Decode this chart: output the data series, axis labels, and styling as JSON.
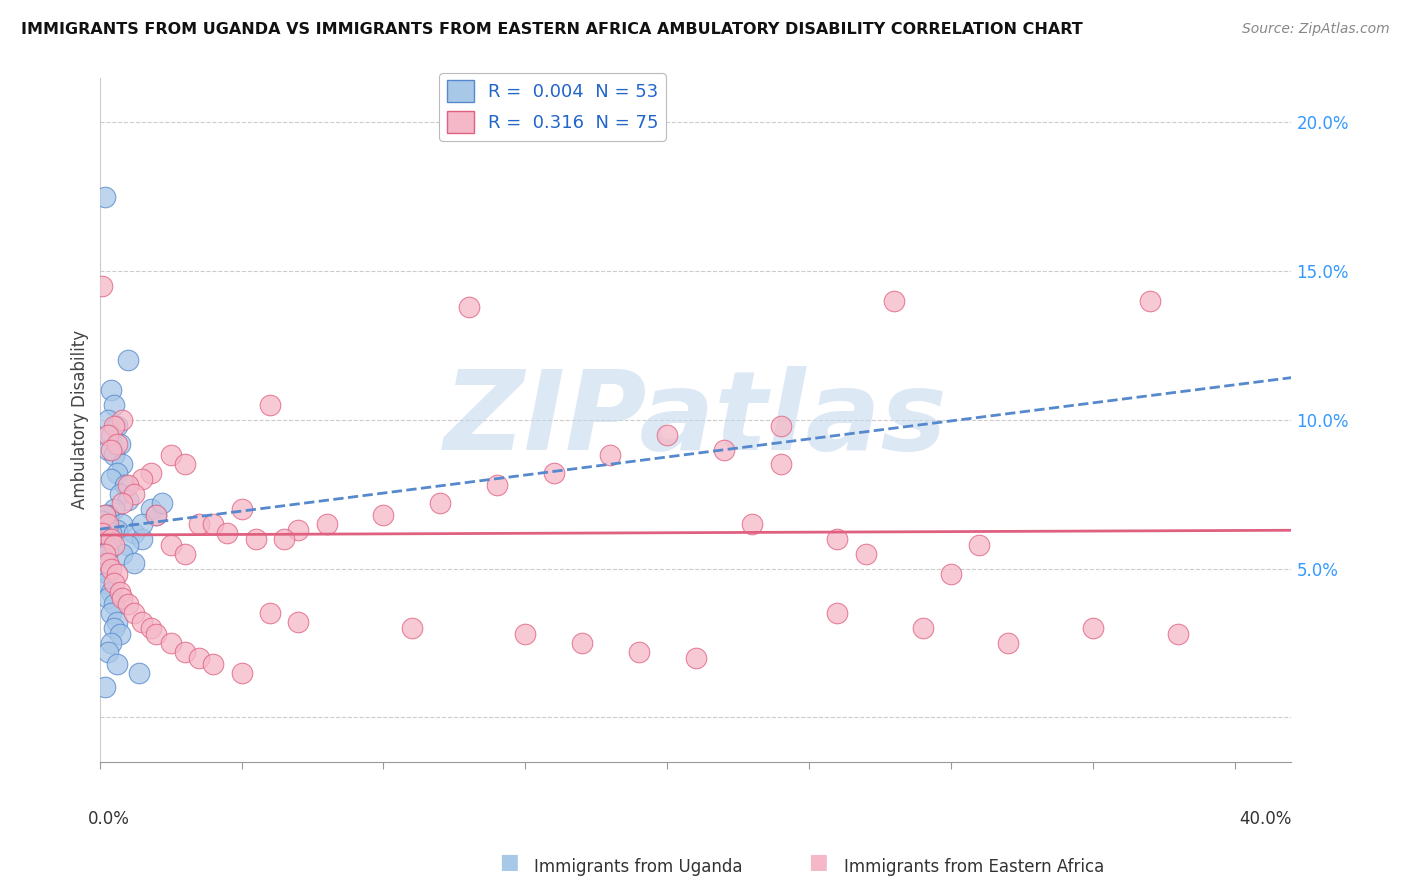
{
  "title": "IMMIGRANTS FROM UGANDA VS IMMIGRANTS FROM EASTERN AFRICA AMBULATORY DISABILITY CORRELATION CHART",
  "source": "Source: ZipAtlas.com",
  "ylabel": "Ambulatory Disability",
  "y_ticks": [
    0.0,
    0.05,
    0.1,
    0.15,
    0.2
  ],
  "y_tick_labels": [
    "",
    "5.0%",
    "10.0%",
    "15.0%",
    "20.0%"
  ],
  "x_ticks": [
    0.0,
    0.05,
    0.1,
    0.15,
    0.2,
    0.25,
    0.3,
    0.35,
    0.4
  ],
  "xlim": [
    0.0,
    0.42
  ],
  "ylim": [
    -0.015,
    0.215
  ],
  "legend1_label": "R =  0.004  N = 53",
  "legend2_label": "R =  0.316  N = 75",
  "legend1_color": "#a8c8e8",
  "legend2_color": "#f5b8c8",
  "line1_color": "#5588cc",
  "line2_color": "#e06080",
  "scatter1_color": "#a8c8e8",
  "scatter2_color": "#f5b8c8",
  "watermark": "ZIPatlas",
  "bottom_label1": "Immigrants from Uganda",
  "bottom_label2": "Immigrants from Eastern Africa",
  "blue_points": [
    [
      0.002,
      0.175
    ],
    [
      0.01,
      0.12
    ],
    [
      0.004,
      0.11
    ],
    [
      0.005,
      0.105
    ],
    [
      0.003,
      0.1
    ],
    [
      0.006,
      0.098
    ],
    [
      0.004,
      0.095
    ],
    [
      0.007,
      0.092
    ],
    [
      0.003,
      0.09
    ],
    [
      0.005,
      0.088
    ],
    [
      0.008,
      0.085
    ],
    [
      0.006,
      0.082
    ],
    [
      0.004,
      0.08
    ],
    [
      0.009,
      0.078
    ],
    [
      0.007,
      0.075
    ],
    [
      0.01,
      0.073
    ],
    [
      0.005,
      0.07
    ],
    [
      0.003,
      0.068
    ],
    [
      0.008,
      0.065
    ],
    [
      0.006,
      0.063
    ],
    [
      0.012,
      0.062
    ],
    [
      0.015,
      0.06
    ],
    [
      0.01,
      0.058
    ],
    [
      0.008,
      0.055
    ],
    [
      0.012,
      0.052
    ],
    [
      0.018,
      0.07
    ],
    [
      0.02,
      0.068
    ],
    [
      0.015,
      0.065
    ],
    [
      0.022,
      0.072
    ],
    [
      0.002,
      0.068
    ],
    [
      0.001,
      0.066
    ],
    [
      0.003,
      0.064
    ],
    [
      0.004,
      0.062
    ],
    [
      0.001,
      0.06
    ],
    [
      0.002,
      0.058
    ],
    [
      0.003,
      0.056
    ],
    [
      0.001,
      0.054
    ],
    [
      0.002,
      0.052
    ],
    [
      0.001,
      0.05
    ],
    [
      0.003,
      0.048
    ],
    [
      0.002,
      0.045
    ],
    [
      0.004,
      0.042
    ],
    [
      0.003,
      0.04
    ],
    [
      0.005,
      0.038
    ],
    [
      0.004,
      0.035
    ],
    [
      0.006,
      0.032
    ],
    [
      0.005,
      0.03
    ],
    [
      0.007,
      0.028
    ],
    [
      0.004,
      0.025
    ],
    [
      0.003,
      0.022
    ],
    [
      0.006,
      0.018
    ],
    [
      0.014,
      0.015
    ],
    [
      0.002,
      0.01
    ]
  ],
  "pink_points": [
    [
      0.001,
      0.145
    ],
    [
      0.06,
      0.105
    ],
    [
      0.008,
      0.1
    ],
    [
      0.005,
      0.098
    ],
    [
      0.003,
      0.095
    ],
    [
      0.006,
      0.092
    ],
    [
      0.004,
      0.09
    ],
    [
      0.025,
      0.088
    ],
    [
      0.03,
      0.085
    ],
    [
      0.018,
      0.082
    ],
    [
      0.015,
      0.08
    ],
    [
      0.01,
      0.078
    ],
    [
      0.012,
      0.075
    ],
    [
      0.008,
      0.072
    ],
    [
      0.05,
      0.07
    ],
    [
      0.02,
      0.068
    ],
    [
      0.035,
      0.065
    ],
    [
      0.04,
      0.065
    ],
    [
      0.045,
      0.062
    ],
    [
      0.055,
      0.06
    ],
    [
      0.025,
      0.058
    ],
    [
      0.03,
      0.055
    ],
    [
      0.2,
      0.095
    ],
    [
      0.22,
      0.09
    ],
    [
      0.24,
      0.085
    ],
    [
      0.18,
      0.088
    ],
    [
      0.16,
      0.082
    ],
    [
      0.14,
      0.078
    ],
    [
      0.12,
      0.072
    ],
    [
      0.1,
      0.068
    ],
    [
      0.08,
      0.065
    ],
    [
      0.07,
      0.063
    ],
    [
      0.065,
      0.06
    ],
    [
      0.002,
      0.068
    ],
    [
      0.003,
      0.065
    ],
    [
      0.001,
      0.062
    ],
    [
      0.004,
      0.06
    ],
    [
      0.005,
      0.058
    ],
    [
      0.002,
      0.055
    ],
    [
      0.003,
      0.052
    ],
    [
      0.004,
      0.05
    ],
    [
      0.006,
      0.048
    ],
    [
      0.005,
      0.045
    ],
    [
      0.007,
      0.042
    ],
    [
      0.008,
      0.04
    ],
    [
      0.01,
      0.038
    ],
    [
      0.012,
      0.035
    ],
    [
      0.015,
      0.032
    ],
    [
      0.018,
      0.03
    ],
    [
      0.02,
      0.028
    ],
    [
      0.025,
      0.025
    ],
    [
      0.03,
      0.022
    ],
    [
      0.035,
      0.02
    ],
    [
      0.04,
      0.018
    ],
    [
      0.05,
      0.015
    ],
    [
      0.06,
      0.035
    ],
    [
      0.07,
      0.032
    ],
    [
      0.11,
      0.03
    ],
    [
      0.15,
      0.028
    ],
    [
      0.17,
      0.025
    ],
    [
      0.19,
      0.022
    ],
    [
      0.21,
      0.02
    ],
    [
      0.26,
      0.035
    ],
    [
      0.29,
      0.03
    ],
    [
      0.32,
      0.025
    ],
    [
      0.35,
      0.03
    ],
    [
      0.38,
      0.028
    ],
    [
      0.13,
      0.138
    ],
    [
      0.28,
      0.14
    ],
    [
      0.37,
      0.14
    ],
    [
      0.24,
      0.098
    ],
    [
      0.3,
      0.048
    ],
    [
      0.31,
      0.058
    ],
    [
      0.26,
      0.06
    ],
    [
      0.23,
      0.065
    ],
    [
      0.27,
      0.055
    ]
  ]
}
